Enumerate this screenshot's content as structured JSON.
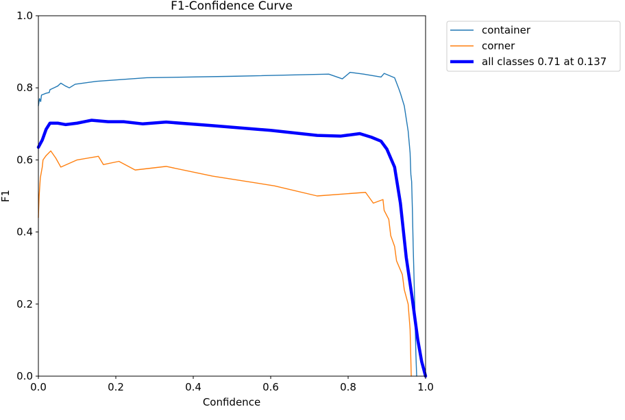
{
  "chart_data": {
    "type": "line",
    "title": "F1-Confidence Curve",
    "xlabel": "Confidence",
    "ylabel": "F1",
    "xlim": [
      0.0,
      1.0
    ],
    "ylim": [
      0.0,
      1.0
    ],
    "grid": false,
    "legend_position": "upper right (outside)",
    "xticks": [
      0.0,
      0.2,
      0.4,
      0.6,
      0.8,
      1.0
    ],
    "yticks": [
      0.0,
      0.2,
      0.4,
      0.6,
      0.8,
      1.0
    ],
    "xtick_labels": [
      "0.0",
      "0.2",
      "0.4",
      "0.6",
      "0.8",
      "1.0"
    ],
    "ytick_labels": [
      "0.0",
      "0.2",
      "0.4",
      "0.6",
      "0.8",
      "1.0"
    ],
    "series": [
      {
        "name": "container",
        "color": "#1f77b4",
        "line_weight": "thin",
        "points": [
          [
            0.0,
            0.75
          ],
          [
            0.003,
            0.77
          ],
          [
            0.006,
            0.762
          ],
          [
            0.008,
            0.78
          ],
          [
            0.02,
            0.785
          ],
          [
            0.028,
            0.787
          ],
          [
            0.03,
            0.795
          ],
          [
            0.04,
            0.8
          ],
          [
            0.05,
            0.805
          ],
          [
            0.058,
            0.813
          ],
          [
            0.07,
            0.805
          ],
          [
            0.08,
            0.8
          ],
          [
            0.095,
            0.81
          ],
          [
            0.15,
            0.818
          ],
          [
            0.28,
            0.828
          ],
          [
            0.5,
            0.832
          ],
          [
            0.75,
            0.838
          ],
          [
            0.785,
            0.825
          ],
          [
            0.805,
            0.843
          ],
          [
            0.84,
            0.838
          ],
          [
            0.885,
            0.83
          ],
          [
            0.893,
            0.84
          ],
          [
            0.92,
            0.828
          ],
          [
            0.93,
            0.8
          ],
          [
            0.935,
            0.785
          ],
          [
            0.945,
            0.75
          ],
          [
            0.955,
            0.68
          ],
          [
            0.96,
            0.62
          ],
          [
            0.962,
            0.56
          ],
          [
            0.964,
            0.54
          ],
          [
            0.966,
            0.46
          ],
          [
            0.968,
            0.36
          ],
          [
            0.972,
            0.2
          ],
          [
            0.975,
            0.06
          ],
          [
            0.977,
            0.0
          ]
        ]
      },
      {
        "name": "corner",
        "color": "#ff7f0e",
        "line_weight": "thin",
        "points": [
          [
            0.0,
            0.44
          ],
          [
            0.002,
            0.5
          ],
          [
            0.005,
            0.55
          ],
          [
            0.01,
            0.58
          ],
          [
            0.012,
            0.6
          ],
          [
            0.02,
            0.612
          ],
          [
            0.032,
            0.625
          ],
          [
            0.045,
            0.605
          ],
          [
            0.058,
            0.58
          ],
          [
            0.1,
            0.6
          ],
          [
            0.155,
            0.61
          ],
          [
            0.168,
            0.587
          ],
          [
            0.208,
            0.596
          ],
          [
            0.25,
            0.572
          ],
          [
            0.33,
            0.582
          ],
          [
            0.45,
            0.555
          ],
          [
            0.61,
            0.528
          ],
          [
            0.72,
            0.5
          ],
          [
            0.845,
            0.51
          ],
          [
            0.865,
            0.48
          ],
          [
            0.89,
            0.49
          ],
          [
            0.893,
            0.46
          ],
          [
            0.905,
            0.435
          ],
          [
            0.91,
            0.39
          ],
          [
            0.92,
            0.36
          ],
          [
            0.925,
            0.32
          ],
          [
            0.94,
            0.282
          ],
          [
            0.945,
            0.24
          ],
          [
            0.955,
            0.2
          ],
          [
            0.96,
            0.13
          ],
          [
            0.963,
            0.0
          ]
        ]
      },
      {
        "name": "all classes 0.71 at 0.137",
        "color": "#0000ff",
        "line_weight": "thick",
        "points": [
          [
            0.0,
            0.635
          ],
          [
            0.01,
            0.655
          ],
          [
            0.02,
            0.685
          ],
          [
            0.03,
            0.702
          ],
          [
            0.05,
            0.702
          ],
          [
            0.07,
            0.698
          ],
          [
            0.1,
            0.702
          ],
          [
            0.137,
            0.71
          ],
          [
            0.18,
            0.706
          ],
          [
            0.22,
            0.706
          ],
          [
            0.27,
            0.7
          ],
          [
            0.33,
            0.705
          ],
          [
            0.45,
            0.695
          ],
          [
            0.6,
            0.682
          ],
          [
            0.72,
            0.668
          ],
          [
            0.78,
            0.666
          ],
          [
            0.83,
            0.673
          ],
          [
            0.86,
            0.663
          ],
          [
            0.885,
            0.652
          ],
          [
            0.9,
            0.63
          ],
          [
            0.92,
            0.58
          ],
          [
            0.935,
            0.48
          ],
          [
            0.95,
            0.33
          ],
          [
            0.965,
            0.22
          ],
          [
            0.98,
            0.1
          ],
          [
            0.99,
            0.04
          ],
          [
            1.0,
            0.0
          ]
        ]
      }
    ]
  }
}
